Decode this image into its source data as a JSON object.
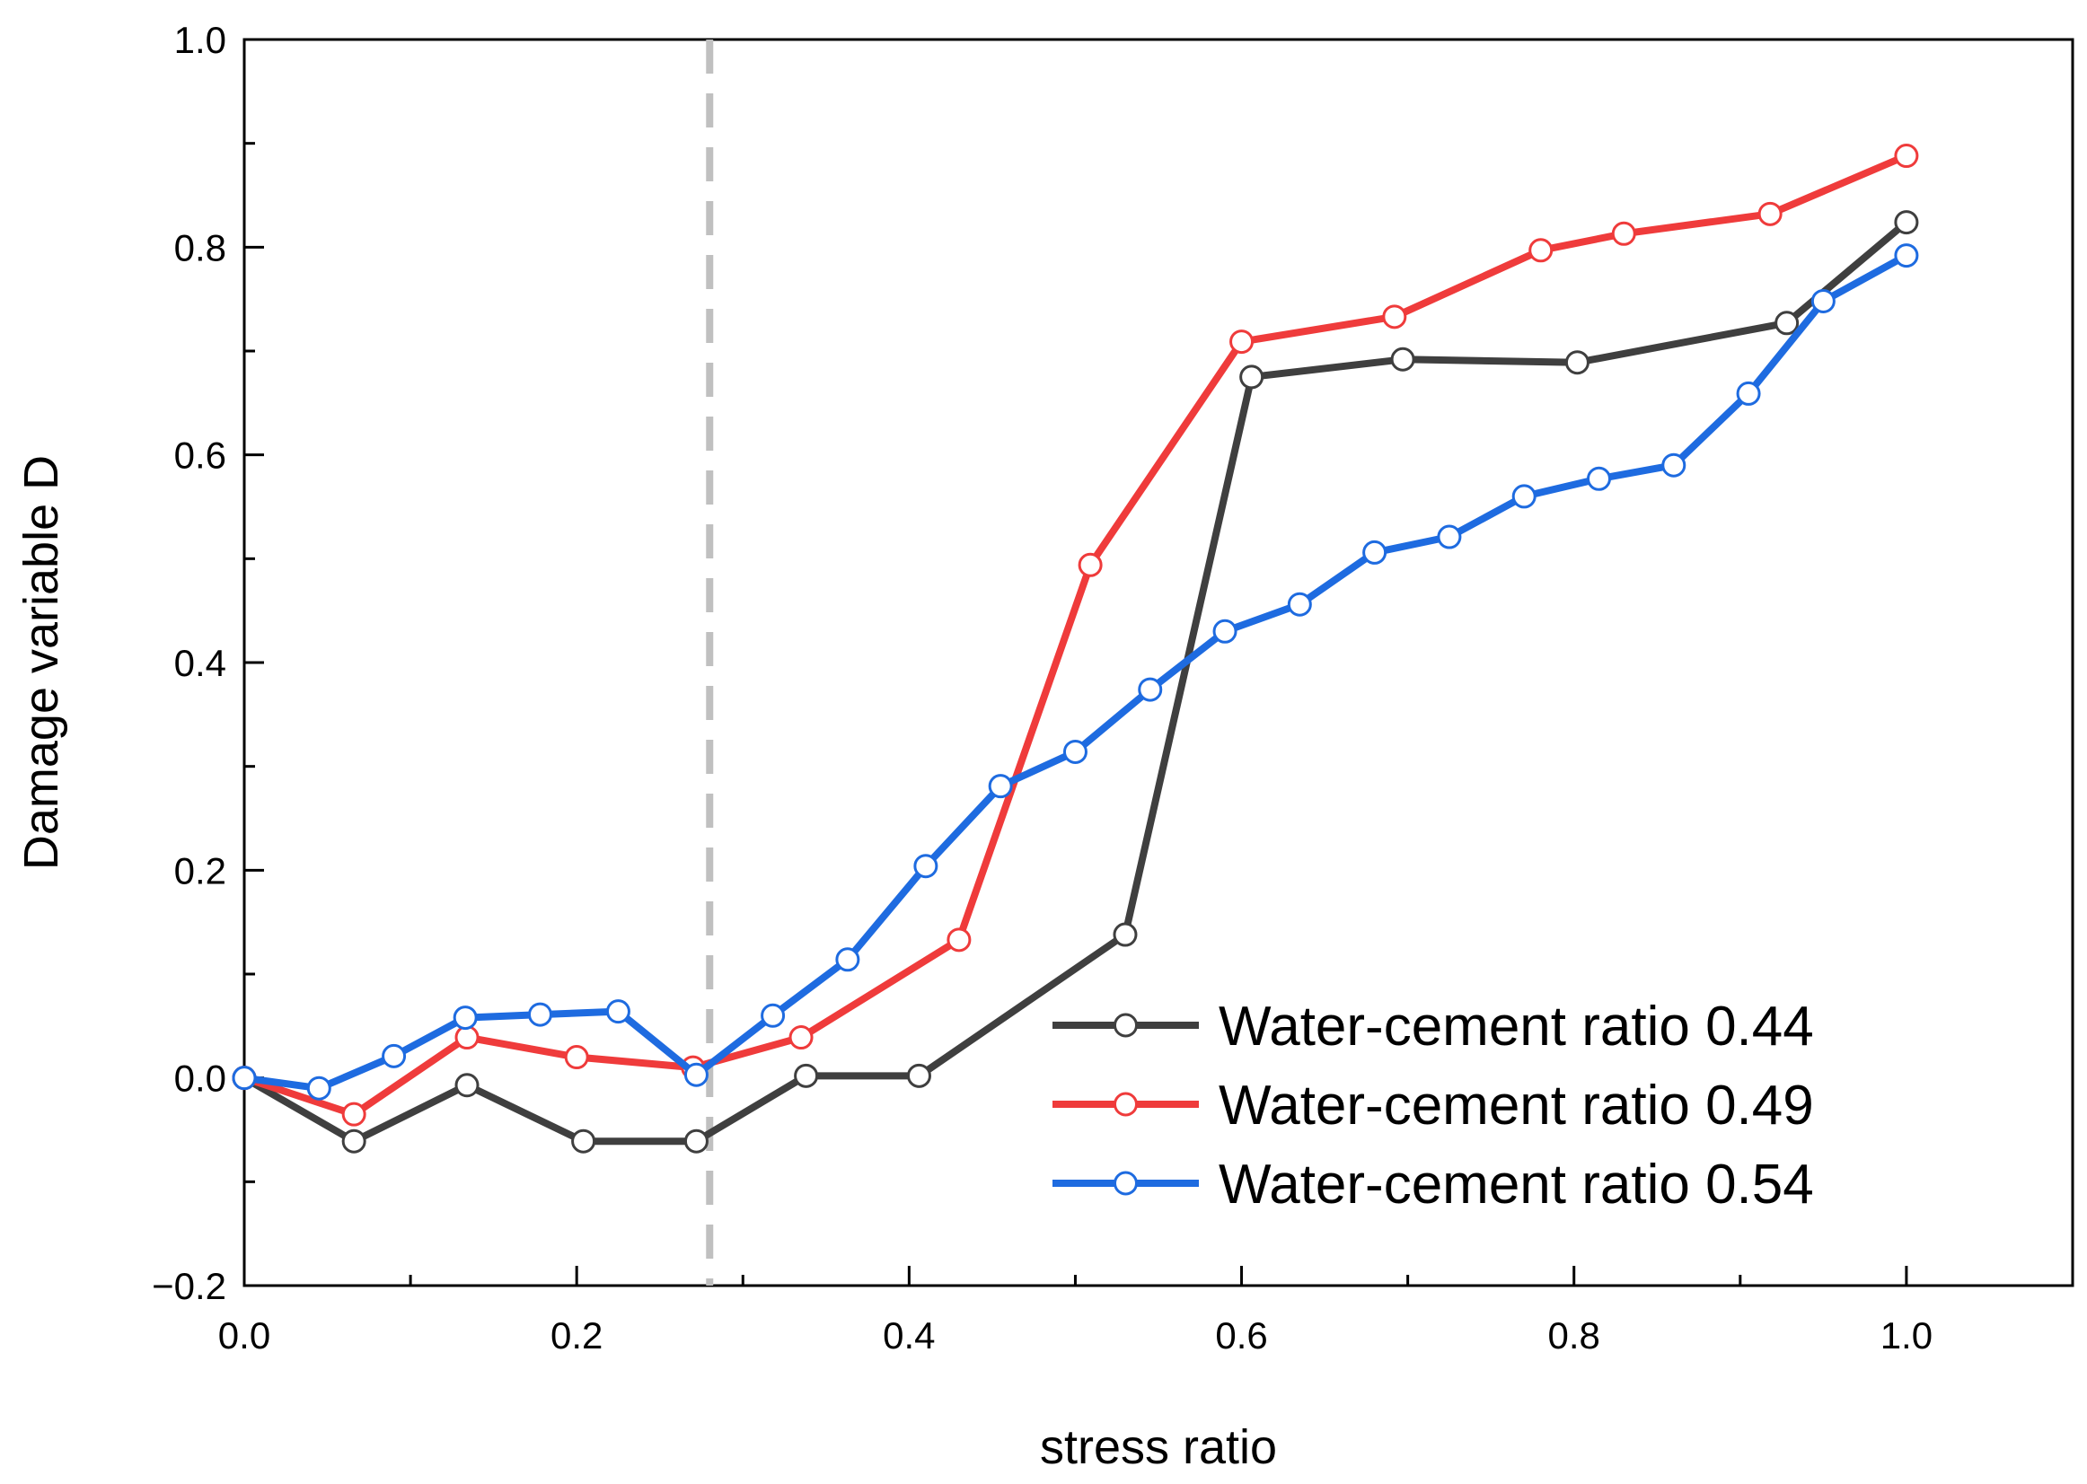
{
  "chart_data": {
    "type": "line",
    "title": "",
    "xlabel": "stress ratio",
    "ylabel": "Damage variable D",
    "xlim": [
      0.0,
      1.1
    ],
    "ylim": [
      -0.2,
      1.0
    ],
    "xticks": [
      0.0,
      0.2,
      0.4,
      0.6,
      0.8,
      1.0
    ],
    "xtick_labels": [
      "0.0",
      "0.2",
      "0.4",
      "0.6",
      "0.8",
      "1.0"
    ],
    "yticks": [
      -0.2,
      0.0,
      0.2,
      0.4,
      0.6,
      0.8,
      1.0
    ],
    "ytick_labels": [
      "−0.2",
      "0.0",
      "0.2",
      "0.4",
      "0.6",
      "0.8",
      "1.0"
    ],
    "grid": false,
    "legend_position": "bottom-right",
    "reference_line": {
      "orientation": "vertical",
      "x": 0.28,
      "style": "dashed",
      "color": "#c0c0c0"
    },
    "series": [
      {
        "name": "Water-cement ratio 0.44",
        "color": "#3f3f3f",
        "x": [
          0.0,
          0.066,
          0.134,
          0.204,
          0.272,
          0.338,
          0.406,
          0.53,
          0.606,
          0.697,
          0.802,
          0.928,
          1.0
        ],
        "y": [
          0.0,
          -0.061,
          -0.007,
          -0.061,
          -0.061,
          0.002,
          0.002,
          0.138,
          0.675,
          0.692,
          0.689,
          0.727,
          0.824
        ]
      },
      {
        "name": "Water-cement ratio 0.49",
        "color": "#ef3b3b",
        "x": [
          0.0,
          0.066,
          0.134,
          0.2,
          0.27,
          0.335,
          0.43,
          0.509,
          0.6,
          0.692,
          0.78,
          0.83,
          0.918,
          1.0
        ],
        "y": [
          0.0,
          -0.035,
          0.039,
          0.02,
          0.01,
          0.039,
          0.133,
          0.494,
          0.709,
          0.733,
          0.797,
          0.813,
          0.832,
          0.888
        ]
      },
      {
        "name": "Water-cement ratio 0.54",
        "color": "#1e6be0",
        "x": [
          0.0,
          0.045,
          0.09,
          0.133,
          0.178,
          0.225,
          0.272,
          0.318,
          0.363,
          0.41,
          0.455,
          0.5,
          0.545,
          0.59,
          0.635,
          0.68,
          0.725,
          0.77,
          0.815,
          0.86,
          0.905,
          0.95,
          1.0
        ],
        "y": [
          0.0,
          -0.01,
          0.021,
          0.058,
          0.061,
          0.064,
          0.003,
          0.06,
          0.114,
          0.204,
          0.281,
          0.314,
          0.374,
          0.43,
          0.456,
          0.506,
          0.521,
          0.56,
          0.577,
          0.59,
          0.659,
          0.748,
          0.792
        ]
      }
    ]
  }
}
